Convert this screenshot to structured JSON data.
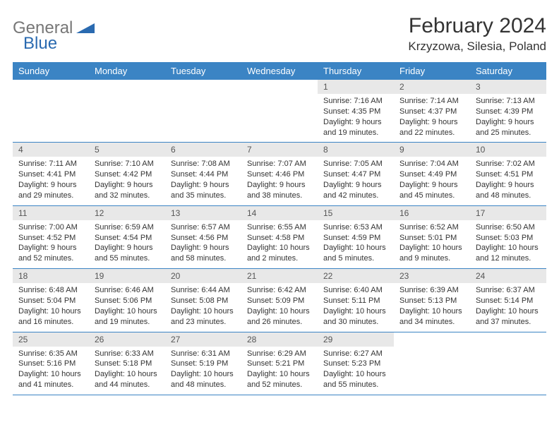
{
  "brand": {
    "part1": "General",
    "part2": "Blue"
  },
  "title": "February 2024",
  "location": "Krzyzowa, Silesia, Poland",
  "colors": {
    "header_bg": "#3b84c4",
    "daynum_bg": "#e8e8e8",
    "border": "#3b84c4",
    "logo_gray": "#777777",
    "logo_blue": "#2a6ab0"
  },
  "dayHeaders": [
    "Sunday",
    "Monday",
    "Tuesday",
    "Wednesday",
    "Thursday",
    "Friday",
    "Saturday"
  ],
  "weeks": [
    [
      null,
      null,
      null,
      null,
      {
        "n": "1",
        "sr": "7:16 AM",
        "ss": "4:35 PM",
        "dl": "9 hours and 19 minutes."
      },
      {
        "n": "2",
        "sr": "7:14 AM",
        "ss": "4:37 PM",
        "dl": "9 hours and 22 minutes."
      },
      {
        "n": "3",
        "sr": "7:13 AM",
        "ss": "4:39 PM",
        "dl": "9 hours and 25 minutes."
      }
    ],
    [
      {
        "n": "4",
        "sr": "7:11 AM",
        "ss": "4:41 PM",
        "dl": "9 hours and 29 minutes."
      },
      {
        "n": "5",
        "sr": "7:10 AM",
        "ss": "4:42 PM",
        "dl": "9 hours and 32 minutes."
      },
      {
        "n": "6",
        "sr": "7:08 AM",
        "ss": "4:44 PM",
        "dl": "9 hours and 35 minutes."
      },
      {
        "n": "7",
        "sr": "7:07 AM",
        "ss": "4:46 PM",
        "dl": "9 hours and 38 minutes."
      },
      {
        "n": "8",
        "sr": "7:05 AM",
        "ss": "4:47 PM",
        "dl": "9 hours and 42 minutes."
      },
      {
        "n": "9",
        "sr": "7:04 AM",
        "ss": "4:49 PM",
        "dl": "9 hours and 45 minutes."
      },
      {
        "n": "10",
        "sr": "7:02 AM",
        "ss": "4:51 PM",
        "dl": "9 hours and 48 minutes."
      }
    ],
    [
      {
        "n": "11",
        "sr": "7:00 AM",
        "ss": "4:52 PM",
        "dl": "9 hours and 52 minutes."
      },
      {
        "n": "12",
        "sr": "6:59 AM",
        "ss": "4:54 PM",
        "dl": "9 hours and 55 minutes."
      },
      {
        "n": "13",
        "sr": "6:57 AM",
        "ss": "4:56 PM",
        "dl": "9 hours and 58 minutes."
      },
      {
        "n": "14",
        "sr": "6:55 AM",
        "ss": "4:58 PM",
        "dl": "10 hours and 2 minutes."
      },
      {
        "n": "15",
        "sr": "6:53 AM",
        "ss": "4:59 PM",
        "dl": "10 hours and 5 minutes."
      },
      {
        "n": "16",
        "sr": "6:52 AM",
        "ss": "5:01 PM",
        "dl": "10 hours and 9 minutes."
      },
      {
        "n": "17",
        "sr": "6:50 AM",
        "ss": "5:03 PM",
        "dl": "10 hours and 12 minutes."
      }
    ],
    [
      {
        "n": "18",
        "sr": "6:48 AM",
        "ss": "5:04 PM",
        "dl": "10 hours and 16 minutes."
      },
      {
        "n": "19",
        "sr": "6:46 AM",
        "ss": "5:06 PM",
        "dl": "10 hours and 19 minutes."
      },
      {
        "n": "20",
        "sr": "6:44 AM",
        "ss": "5:08 PM",
        "dl": "10 hours and 23 minutes."
      },
      {
        "n": "21",
        "sr": "6:42 AM",
        "ss": "5:09 PM",
        "dl": "10 hours and 26 minutes."
      },
      {
        "n": "22",
        "sr": "6:40 AM",
        "ss": "5:11 PM",
        "dl": "10 hours and 30 minutes."
      },
      {
        "n": "23",
        "sr": "6:39 AM",
        "ss": "5:13 PM",
        "dl": "10 hours and 34 minutes."
      },
      {
        "n": "24",
        "sr": "6:37 AM",
        "ss": "5:14 PM",
        "dl": "10 hours and 37 minutes."
      }
    ],
    [
      {
        "n": "25",
        "sr": "6:35 AM",
        "ss": "5:16 PM",
        "dl": "10 hours and 41 minutes."
      },
      {
        "n": "26",
        "sr": "6:33 AM",
        "ss": "5:18 PM",
        "dl": "10 hours and 44 minutes."
      },
      {
        "n": "27",
        "sr": "6:31 AM",
        "ss": "5:19 PM",
        "dl": "10 hours and 48 minutes."
      },
      {
        "n": "28",
        "sr": "6:29 AM",
        "ss": "5:21 PM",
        "dl": "10 hours and 52 minutes."
      },
      {
        "n": "29",
        "sr": "6:27 AM",
        "ss": "5:23 PM",
        "dl": "10 hours and 55 minutes."
      },
      null,
      null
    ]
  ],
  "labels": {
    "sunrise": "Sunrise: ",
    "sunset": "Sunset: ",
    "daylight": "Daylight: "
  }
}
